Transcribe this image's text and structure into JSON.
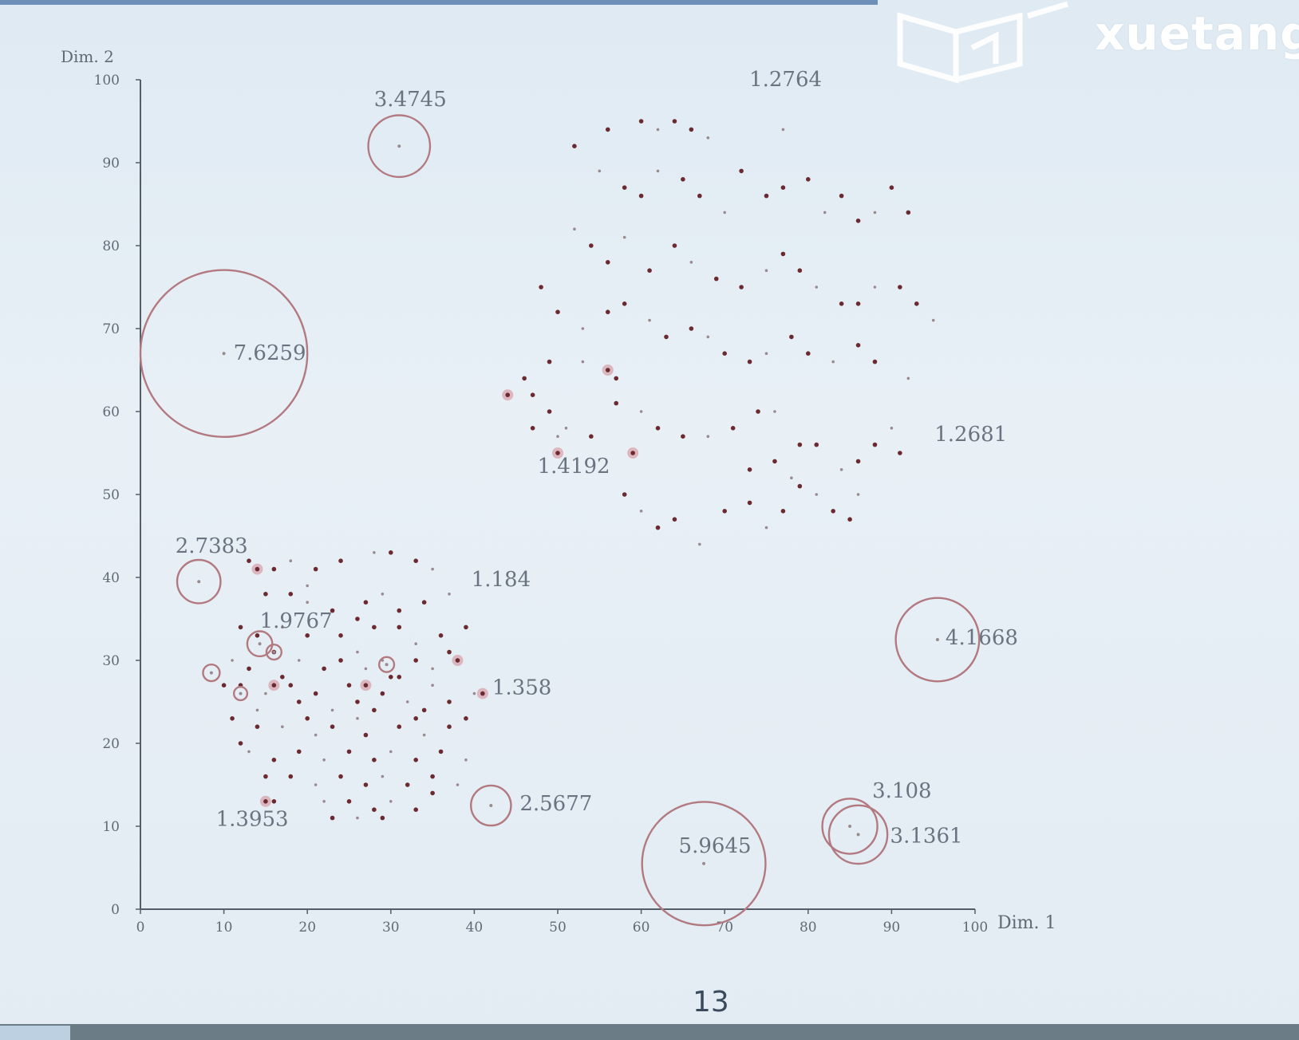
{
  "chart_data": {
    "type": "scatter",
    "xlabel": "Dim. 1",
    "ylabel": "Dim. 2",
    "xlim": [
      0,
      100
    ],
    "ylim": [
      0,
      100
    ],
    "x_ticks": [
      0,
      10,
      20,
      30,
      40,
      50,
      60,
      70,
      80,
      90,
      100
    ],
    "y_ticks": [
      0,
      10,
      20,
      30,
      40,
      50,
      60,
      70,
      80,
      90,
      100
    ],
    "grid": false,
    "colors": {
      "axis": "#555e68",
      "point_dark": "#6b2a30",
      "point_light": "#9a8a90",
      "circle": "#b27a80",
      "label": "#6a7480"
    },
    "points": [
      [
        60,
        95
      ],
      [
        62,
        94
      ],
      [
        64,
        95
      ],
      [
        66,
        94
      ],
      [
        68,
        93
      ],
      [
        56,
        94
      ],
      [
        52,
        92
      ],
      [
        55,
        89
      ],
      [
        58,
        87
      ],
      [
        60,
        86
      ],
      [
        62,
        89
      ],
      [
        65,
        88
      ],
      [
        67,
        86
      ],
      [
        70,
        84
      ],
      [
        72,
        89
      ],
      [
        75,
        86
      ],
      [
        77,
        94
      ],
      [
        77,
        87
      ],
      [
        80,
        88
      ],
      [
        82,
        84
      ],
      [
        84,
        86
      ],
      [
        86,
        83
      ],
      [
        88,
        84
      ],
      [
        90,
        87
      ],
      [
        92,
        84
      ],
      [
        52,
        82
      ],
      [
        54,
        80
      ],
      [
        56,
        78
      ],
      [
        58,
        81
      ],
      [
        61,
        77
      ],
      [
        64,
        80
      ],
      [
        66,
        78
      ],
      [
        69,
        76
      ],
      [
        72,
        75
      ],
      [
        75,
        77
      ],
      [
        77,
        79
      ],
      [
        79,
        77
      ],
      [
        81,
        75
      ],
      [
        84,
        73
      ],
      [
        86,
        73
      ],
      [
        88,
        75
      ],
      [
        91,
        75
      ],
      [
        93,
        73
      ],
      [
        95,
        71
      ],
      [
        48,
        75
      ],
      [
        50,
        72
      ],
      [
        53,
        70
      ],
      [
        56,
        72
      ],
      [
        58,
        73
      ],
      [
        61,
        71
      ],
      [
        63,
        69
      ],
      [
        66,
        70
      ],
      [
        68,
        69
      ],
      [
        70,
        67
      ],
      [
        73,
        66
      ],
      [
        75,
        67
      ],
      [
        78,
        69
      ],
      [
        80,
        67
      ],
      [
        83,
        66
      ],
      [
        86,
        68
      ],
      [
        88,
        66
      ],
      [
        92,
        64
      ],
      [
        47,
        62
      ],
      [
        49,
        60
      ],
      [
        51,
        58
      ],
      [
        54,
        57
      ],
      [
        57,
        61
      ],
      [
        60,
        60
      ],
      [
        62,
        58
      ],
      [
        65,
        57
      ],
      [
        68,
        57
      ],
      [
        71,
        58
      ],
      [
        74,
        60
      ],
      [
        76,
        60
      ],
      [
        79,
        56
      ],
      [
        81,
        56
      ],
      [
        84,
        53
      ],
      [
        86,
        54
      ],
      [
        88,
        56
      ],
      [
        90,
        58
      ],
      [
        91,
        55
      ],
      [
        58,
        50
      ],
      [
        60,
        48
      ],
      [
        62,
        46
      ],
      [
        64,
        47
      ],
      [
        67,
        44
      ],
      [
        70,
        48
      ],
      [
        73,
        49
      ],
      [
        75,
        46
      ],
      [
        77,
        48
      ],
      [
        79,
        51
      ],
      [
        81,
        50
      ],
      [
        83,
        48
      ],
      [
        85,
        47
      ],
      [
        86,
        50
      ],
      [
        73,
        53
      ],
      [
        76,
        54
      ],
      [
        78,
        52
      ],
      [
        46,
        64
      ],
      [
        49,
        66
      ],
      [
        53,
        66
      ],
      [
        57,
        64
      ],
      [
        47,
        58
      ],
      [
        50,
        57
      ],
      [
        13,
        42
      ],
      [
        16,
        41
      ],
      [
        18,
        42
      ],
      [
        21,
        41
      ],
      [
        24,
        42
      ],
      [
        28,
        43
      ],
      [
        30,
        43
      ],
      [
        33,
        42
      ],
      [
        35,
        41
      ],
      [
        15,
        38
      ],
      [
        18,
        38
      ],
      [
        20,
        37
      ],
      [
        23,
        36
      ],
      [
        27,
        37
      ],
      [
        29,
        38
      ],
      [
        31,
        36
      ],
      [
        34,
        37
      ],
      [
        37,
        38
      ],
      [
        12,
        34
      ],
      [
        14,
        33
      ],
      [
        17,
        34
      ],
      [
        20,
        33
      ],
      [
        24,
        33
      ],
      [
        26,
        31
      ],
      [
        28,
        34
      ],
      [
        31,
        34
      ],
      [
        33,
        32
      ],
      [
        36,
        33
      ],
      [
        39,
        34
      ],
      [
        11,
        30
      ],
      [
        13,
        29
      ],
      [
        16,
        31
      ],
      [
        19,
        30
      ],
      [
        22,
        29
      ],
      [
        24,
        30
      ],
      [
        27,
        29
      ],
      [
        30,
        28
      ],
      [
        33,
        30
      ],
      [
        35,
        29
      ],
      [
        38,
        30
      ],
      [
        12,
        27
      ],
      [
        15,
        26
      ],
      [
        18,
        27
      ],
      [
        21,
        26
      ],
      [
        23,
        24
      ],
      [
        26,
        25
      ],
      [
        29,
        26
      ],
      [
        32,
        25
      ],
      [
        34,
        24
      ],
      [
        37,
        25
      ],
      [
        40,
        26
      ],
      [
        11,
        23
      ],
      [
        14,
        22
      ],
      [
        17,
        22
      ],
      [
        20,
        23
      ],
      [
        23,
        22
      ],
      [
        26,
        23
      ],
      [
        28,
        24
      ],
      [
        31,
        22
      ],
      [
        34,
        21
      ],
      [
        37,
        22
      ],
      [
        39,
        23
      ],
      [
        13,
        19
      ],
      [
        16,
        18
      ],
      [
        19,
        19
      ],
      [
        22,
        18
      ],
      [
        25,
        19
      ],
      [
        28,
        18
      ],
      [
        30,
        19
      ],
      [
        33,
        18
      ],
      [
        36,
        19
      ],
      [
        39,
        18
      ],
      [
        15,
        16
      ],
      [
        18,
        16
      ],
      [
        21,
        15
      ],
      [
        24,
        16
      ],
      [
        27,
        15
      ],
      [
        29,
        16
      ],
      [
        32,
        15
      ],
      [
        35,
        14
      ],
      [
        22,
        13
      ],
      [
        25,
        13
      ],
      [
        28,
        12
      ],
      [
        30,
        13
      ],
      [
        33,
        12
      ],
      [
        23,
        11
      ],
      [
        26,
        11
      ],
      [
        29,
        11
      ],
      [
        12,
        20
      ],
      [
        14,
        24
      ],
      [
        17,
        28
      ],
      [
        19,
        25
      ],
      [
        21,
        21
      ],
      [
        25,
        27
      ],
      [
        27,
        21
      ],
      [
        29,
        30
      ],
      [
        31,
        28
      ],
      [
        33,
        23
      ],
      [
        35,
        27
      ],
      [
        37,
        31
      ],
      [
        26,
        35
      ],
      [
        20,
        39
      ],
      [
        10,
        27
      ],
      [
        35,
        16
      ],
      [
        38,
        15
      ],
      [
        16,
        13
      ]
    ],
    "highlighted": [
      [
        44,
        62
      ],
      [
        56,
        65
      ],
      [
        59,
        55
      ],
      [
        50,
        55
      ],
      [
        14,
        41
      ],
      [
        27,
        27
      ],
      [
        16,
        27
      ],
      [
        15,
        13
      ],
      [
        38,
        30
      ],
      [
        41,
        26
      ]
    ],
    "outliers": [
      {
        "x": 10,
        "y": 67,
        "lof": "7.6259",
        "r": 10
      },
      {
        "x": 31,
        "y": 92,
        "lof": "3.4745",
        "r": 3.7
      },
      {
        "x": 7,
        "y": 39.5,
        "lof": "2.7383",
        "r": 2.6
      },
      {
        "x": 14.3,
        "y": 32,
        "lof": "1.9767",
        "r": 1.5
      },
      {
        "x": 16,
        "y": 31,
        "lof": "",
        "r": 0.9
      },
      {
        "x": 8.5,
        "y": 28.5,
        "lof": "",
        "r": 1
      },
      {
        "x": 12,
        "y": 26,
        "lof": "",
        "r": 0.8
      },
      {
        "x": 29.5,
        "y": 29.5,
        "lof": "",
        "r": 0.9
      },
      {
        "x": 42,
        "y": 12.5,
        "lof": "2.5677",
        "r": 2.4
      },
      {
        "x": 67.5,
        "y": 5.5,
        "lof": "5.9645",
        "r": 7.4
      },
      {
        "x": 95.5,
        "y": 32.5,
        "lof": "4.1668",
        "r": 5
      },
      {
        "x": 85,
        "y": 10,
        "lof": "3.108",
        "r": 3.3
      },
      {
        "x": 86,
        "y": 9,
        "lof": "3.1361",
        "r": 3.5
      }
    ],
    "annotations": [
      {
        "x": 77.3,
        "y": 97.5,
        "text": "1.2764",
        "anchor": "mid",
        "dx": 0,
        "dy": -18
      },
      {
        "x": 94,
        "y": 57,
        "text": "1.2681",
        "anchor": "start",
        "dx": 12,
        "dy": 6
      },
      {
        "x": 50.2,
        "y": 55.5,
        "text": "1.4192",
        "anchor": "mid",
        "dx": 18,
        "dy": 30
      },
      {
        "x": 38.5,
        "y": 39.5,
        "text": "1.184",
        "anchor": "start",
        "dx": 12,
        "dy": 6
      },
      {
        "x": 41,
        "y": 26.5,
        "text": "1.358",
        "anchor": "start",
        "dx": 12,
        "dy": 6
      },
      {
        "x": 15.5,
        "y": 13.5,
        "text": "1.3953",
        "anchor": "mid",
        "dx": -22,
        "dy": 36
      },
      {
        "x": 31,
        "y": 92,
        "text": "3.4745",
        "anchor": "mid",
        "dx": 14,
        "dy": -50
      },
      {
        "x": 10,
        "y": 67,
        "text": "7.6259",
        "anchor": "start",
        "dx": 12,
        "dy": 8
      },
      {
        "x": 7,
        "y": 39.5,
        "text": "2.7383",
        "anchor": "mid",
        "dx": 16,
        "dy": -36
      },
      {
        "x": 14.3,
        "y": 32,
        "text": "1.9767",
        "anchor": "start",
        "dx": 0,
        "dy": -20
      },
      {
        "x": 42,
        "y": 12.5,
        "text": "2.5677",
        "anchor": "start",
        "dx": 36,
        "dy": 6
      },
      {
        "x": 67.5,
        "y": 5.5,
        "text": "5.9645",
        "anchor": "mid",
        "dx": 14,
        "dy": -14
      },
      {
        "x": 95.5,
        "y": 32.5,
        "text": "4.1668",
        "anchor": "start",
        "dx": 10,
        "dy": 6
      },
      {
        "x": 85,
        "y": 10,
        "text": "3.108",
        "anchor": "start",
        "dx": 28,
        "dy": -36
      },
      {
        "x": 86,
        "y": 9,
        "text": "3.1361",
        "anchor": "start",
        "dx": 40,
        "dy": 10
      }
    ]
  },
  "page_number": "13",
  "watermark_text": "xuetang"
}
